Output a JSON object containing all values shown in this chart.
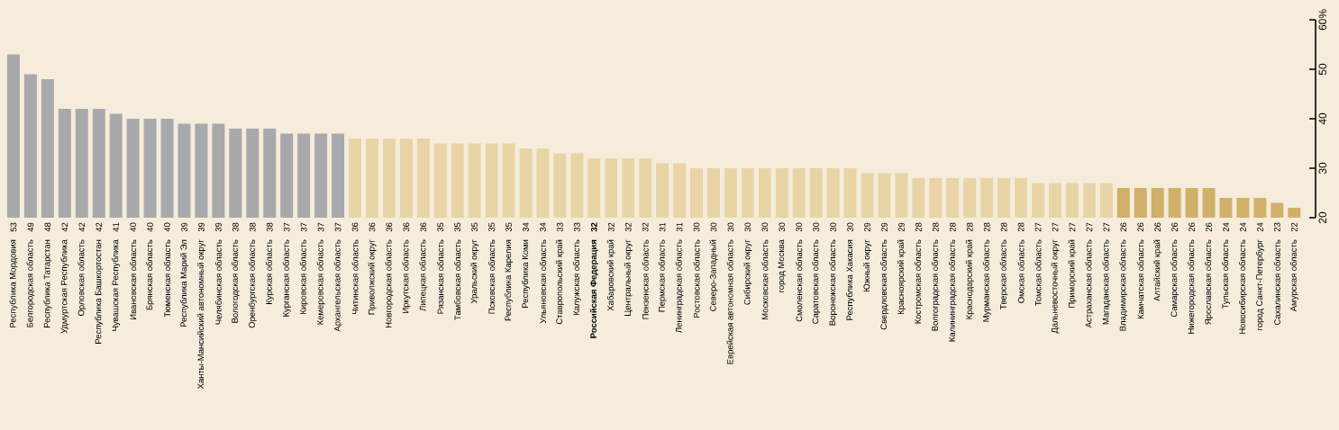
{
  "chart_data": {
    "type": "bar",
    "categories": [
      "Республика Мордовия",
      "Белгородская область",
      "Республика Татарстан",
      "Удмуртская Республика",
      "Орловская область",
      "Республика Башкортостан",
      "Чувашская Республика",
      "Ивановская область",
      "Брянская область",
      "Тюменская область",
      "Республика Марий Эл",
      "Ханты-Мансийский автономный округ",
      "Челябинская область",
      "Вологодская область",
      "Оренбургская область",
      "Курская область",
      "Курганская область",
      "Кировская область",
      "Кемеровская область",
      "Архангельская область",
      "Читинская область",
      "Приволжский округ",
      "Новгородская область",
      "Иркутская область",
      "Липецкая область",
      "Рязанская область",
      "Тамбовская область",
      "Уральский округ",
      "Псковская область",
      "Республика Карелия",
      "Республика Коми",
      "Ульяновская область",
      "Ставропольский край",
      "Калужская область",
      "**Российская Федерация**",
      "Хабаровский край",
      "Центральный округ",
      "Пензенская область",
      "Пермская область",
      "Ленинградская область",
      "Ростовская область",
      "Северо-Западный",
      "Еврейская автономная область",
      "Сибирский округ",
      "Московская область",
      "город Москва",
      "Смоленская область",
      "Саратовская область",
      "Воронежская область",
      "Республика Хакасия",
      "Южный округ",
      "Свердловская область",
      "Красноярский край",
      "Костромская область",
      "Волгоградская область",
      "Калининградская область",
      "Краснодарский край",
      "Мурманская область",
      "Тверская область",
      "Омская область",
      "Томская область",
      "Дальневосточный округ",
      "Приморский край",
      "Астраханская область",
      "Магаданская область",
      "Владимирская область",
      "Камчатская область",
      "Алтайский край",
      "Самарская область",
      "Нижегородская область",
      "Ярославская область",
      "Тульская область",
      "Новосибирская область",
      "город Санкт-Петербург",
      "Сахалинская область",
      "Амурская область"
    ],
    "values": [
      53,
      49,
      48,
      42,
      42,
      42,
      41,
      40,
      40,
      40,
      39,
      39,
      39,
      38,
      38,
      38,
      37,
      37,
      37,
      37,
      36,
      36,
      36,
      36,
      36,
      35,
      35,
      35,
      35,
      35,
      34,
      34,
      33,
      33,
      32,
      32,
      32,
      32,
      31,
      31,
      30,
      30,
      30,
      30,
      30,
      30,
      30,
      30,
      30,
      30,
      29,
      29,
      29,
      28,
      28,
      28,
      28,
      28,
      28,
      28,
      27,
      27,
      27,
      27,
      27,
      26,
      26,
      26,
      26,
      26,
      26,
      24,
      24,
      24,
      23,
      22
    ],
    "colors": [
      "#a8a9ad",
      "#a8a9ad",
      "#a8a9ad",
      "#a8a9ad",
      "#a8a9ad",
      "#a8a9ad",
      "#a8a9ad",
      "#a8a9ad",
      "#a8a9ad",
      "#a8a9ad",
      "#a8a9ad",
      "#a8a9ad",
      "#a8a9ad",
      "#a8a9ad",
      "#a8a9ad",
      "#a8a9ad",
      "#a8a9ad",
      "#a8a9ad",
      "#a8a9ad",
      "#a8a9ad",
      "#e9d4a6",
      "#e9d4a6",
      "#e9d4a6",
      "#e9d4a6",
      "#e9d4a6",
      "#e9d4a6",
      "#e9d4a6",
      "#e9d4a6",
      "#e9d4a6",
      "#e9d4a6",
      "#e9d4a6",
      "#e9d4a6",
      "#e9d4a6",
      "#e9d4a6",
      "#e9d4a6",
      "#e9d4a6",
      "#e9d4a6",
      "#e9d4a6",
      "#e9d4a6",
      "#e9d4a6",
      "#e9d4a6",
      "#e9d4a6",
      "#e9d4a6",
      "#e9d4a6",
      "#e9d4a6",
      "#e9d4a6",
      "#e9d4a6",
      "#e9d4a6",
      "#e9d4a6",
      "#e9d4a6",
      "#e9d4a6",
      "#e9d4a6",
      "#e9d4a6",
      "#e9d4a6",
      "#e9d4a6",
      "#e9d4a6",
      "#e9d4a6",
      "#e9d4a6",
      "#e9d4a6",
      "#e9d4a6",
      "#e9d4a6",
      "#e9d4a6",
      "#e9d4a6",
      "#e9d4a6",
      "#e9d4a6",
      "#d0b06b",
      "#d0b06b",
      "#d0b06b",
      "#d0b06b",
      "#d0b06b",
      "#d0b06b",
      "#d0b06b",
      "#d0b06b",
      "#d0b06b",
      "#d0b06b",
      "#d0b06b"
    ],
    "ylim": [
      20,
      60
    ],
    "yticks": [
      20,
      30,
      40,
      50,
      {
        "value": 60,
        "label": "60%"
      }
    ],
    "data_labels": true
  }
}
